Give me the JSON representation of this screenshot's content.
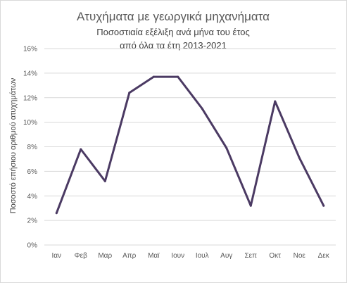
{
  "chart_data": {
    "type": "line",
    "title": "Ατυχήματα με γεωργικά μηχανήματα",
    "subtitle_lines": [
      "Ποσοστιαία εξέλιξη ανά μήνα του έτος",
      "από όλα τα έτη 2013-2021"
    ],
    "ylabel": "Ποσοστό επήσιου αριθμού ατυχημάτων",
    "xlabel": "",
    "categories": [
      "Ιαν",
      "Φεβ",
      "Μαρ",
      "Απρ",
      "Μαϊ",
      "Ιουν",
      "Ιουλ",
      "Αυγ",
      "Σεπ",
      "Οκτ",
      "Νοε",
      "Δεκ"
    ],
    "series": [
      {
        "values": [
          2.6,
          7.8,
          5.2,
          12.4,
          13.7,
          13.7,
          11.1,
          7.9,
          3.2,
          11.7,
          7.1,
          3.2
        ],
        "color": "#4b3a63"
      }
    ],
    "ylim": [
      0,
      16
    ],
    "yticks": [
      0,
      2,
      4,
      6,
      8,
      10,
      12,
      14,
      16
    ],
    "ytick_labels": [
      "0%",
      "2%",
      "4%",
      "6%",
      "8%",
      "10%",
      "12%",
      "14%",
      "16%"
    ],
    "grid": true,
    "legend": "none"
  }
}
